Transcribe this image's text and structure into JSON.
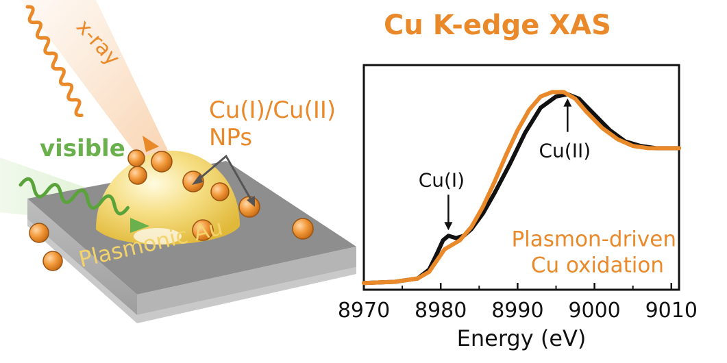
{
  "illustration": {
    "xray_label": "x-ray",
    "visible_label": "visible",
    "np_label_line1": "Cu(I)/Cu(II)",
    "np_label_line2": "NPs",
    "substrate_label": "Plasmonic Au"
  },
  "colors": {
    "orange": "#e9892a",
    "green": "#6ab04c",
    "gold": "#f3d36b",
    "substrate": "#8c8c8c",
    "black_trace": "#111111"
  },
  "chart_data": {
    "type": "line",
    "title": "Cu K-edge XAS",
    "xlabel": "Energy (eV)",
    "ylabel": "",
    "xlim": [
      8970,
      9011
    ],
    "ylim": [
      0,
      1.0
    ],
    "xticks": [
      8970,
      8980,
      8990,
      9000,
      9010
    ],
    "xtick_labels": [
      "8970",
      "8980",
      "8990",
      "9000",
      "9010"
    ],
    "grid": false,
    "series": [
      {
        "name": "",
        "color": "#111111",
        "x": [
          8970,
          8974,
          8977,
          8978.5,
          8979.5,
          8980.3,
          8981,
          8982,
          8983,
          8984,
          8985.5,
          8987,
          8989,
          8991,
          8993,
          8995,
          8996.5,
          8998,
          9000,
          9002,
          9004,
          9006,
          9008,
          9010,
          9011
        ],
        "y": [
          0.03,
          0.035,
          0.05,
          0.09,
          0.16,
          0.22,
          0.24,
          0.23,
          0.24,
          0.27,
          0.34,
          0.43,
          0.56,
          0.7,
          0.81,
          0.86,
          0.87,
          0.85,
          0.78,
          0.71,
          0.66,
          0.64,
          0.63,
          0.63,
          0.63
        ]
      },
      {
        "name": "",
        "color": "#e9892a",
        "x": [
          8970,
          8974,
          8977,
          8978.5,
          8979.5,
          8980.5,
          8981.5,
          8982.5,
          8984,
          8985.5,
          8987,
          8988.5,
          8990,
          8991.5,
          8993,
          8994.5,
          8996,
          8997.5,
          8999,
          9001,
          9003,
          9005,
          9007,
          9009,
          9011
        ],
        "y": [
          0.03,
          0.035,
          0.05,
          0.08,
          0.13,
          0.18,
          0.2,
          0.22,
          0.28,
          0.37,
          0.48,
          0.6,
          0.71,
          0.8,
          0.86,
          0.88,
          0.88,
          0.85,
          0.79,
          0.72,
          0.67,
          0.64,
          0.63,
          0.63,
          0.63
        ]
      }
    ],
    "annotations": [
      {
        "text": "Cu(I)",
        "x": 8981,
        "y": 0.24
      },
      {
        "text": "Cu(II)",
        "x": 8996.5,
        "y": 0.87
      }
    ],
    "inset_text_line1": "Plasmon-driven",
    "inset_text_line2": "Cu oxidation"
  }
}
